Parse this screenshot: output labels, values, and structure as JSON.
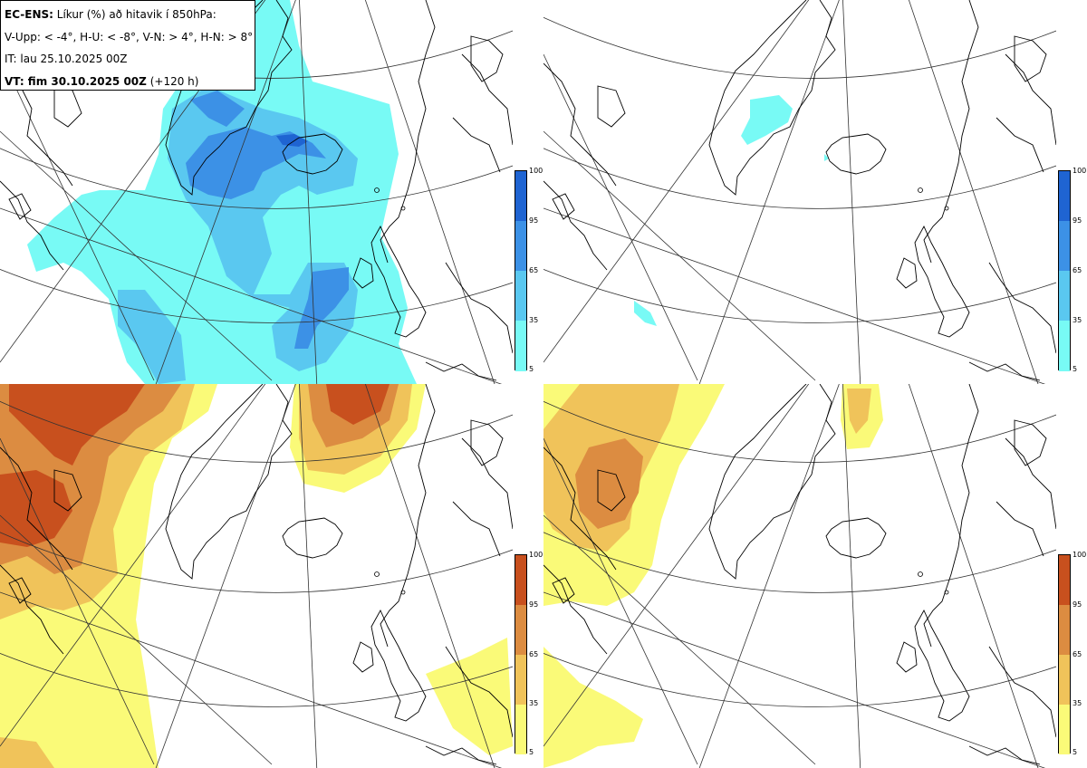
{
  "info": {
    "model": "EC-ENS:",
    "title": "Líkur (%) að hitavik í 850hPa:",
    "legend": "V-Upp: < -4°, H-U: < -8°, V-N: > 4°, H-N: > 8°",
    "init_time": "IT: lau 25.10.2025 00Z",
    "valid_label": "VT: fim 30.10.2025 00Z",
    "lead": "(+120 h)"
  },
  "colorbar_cold": {
    "ticks": [
      "100",
      "95",
      "65",
      "35",
      "5"
    ],
    "colors": [
      "#1f64d2",
      "#3c91e6",
      "#5ac8f0",
      "#78faf5"
    ]
  },
  "colorbar_warm": {
    "ticks": [
      "100",
      "95",
      "65",
      "35",
      "5"
    ],
    "colors": [
      "#c8501e",
      "#dc8c41",
      "#f0c35a",
      "#fafa78"
    ]
  },
  "panels": [
    {
      "name": "V-Upp",
      "description": "probability of 850hPa temperature anomaly < -4°"
    },
    {
      "name": "H-U",
      "description": "probability of 850hPa temperature anomaly < -8°"
    },
    {
      "name": "V-N",
      "description": "probability of 850hPa temperature anomaly > 4°"
    },
    {
      "name": "H-N",
      "description": "probability of 850hPa temperature anomaly > 8°"
    }
  ]
}
